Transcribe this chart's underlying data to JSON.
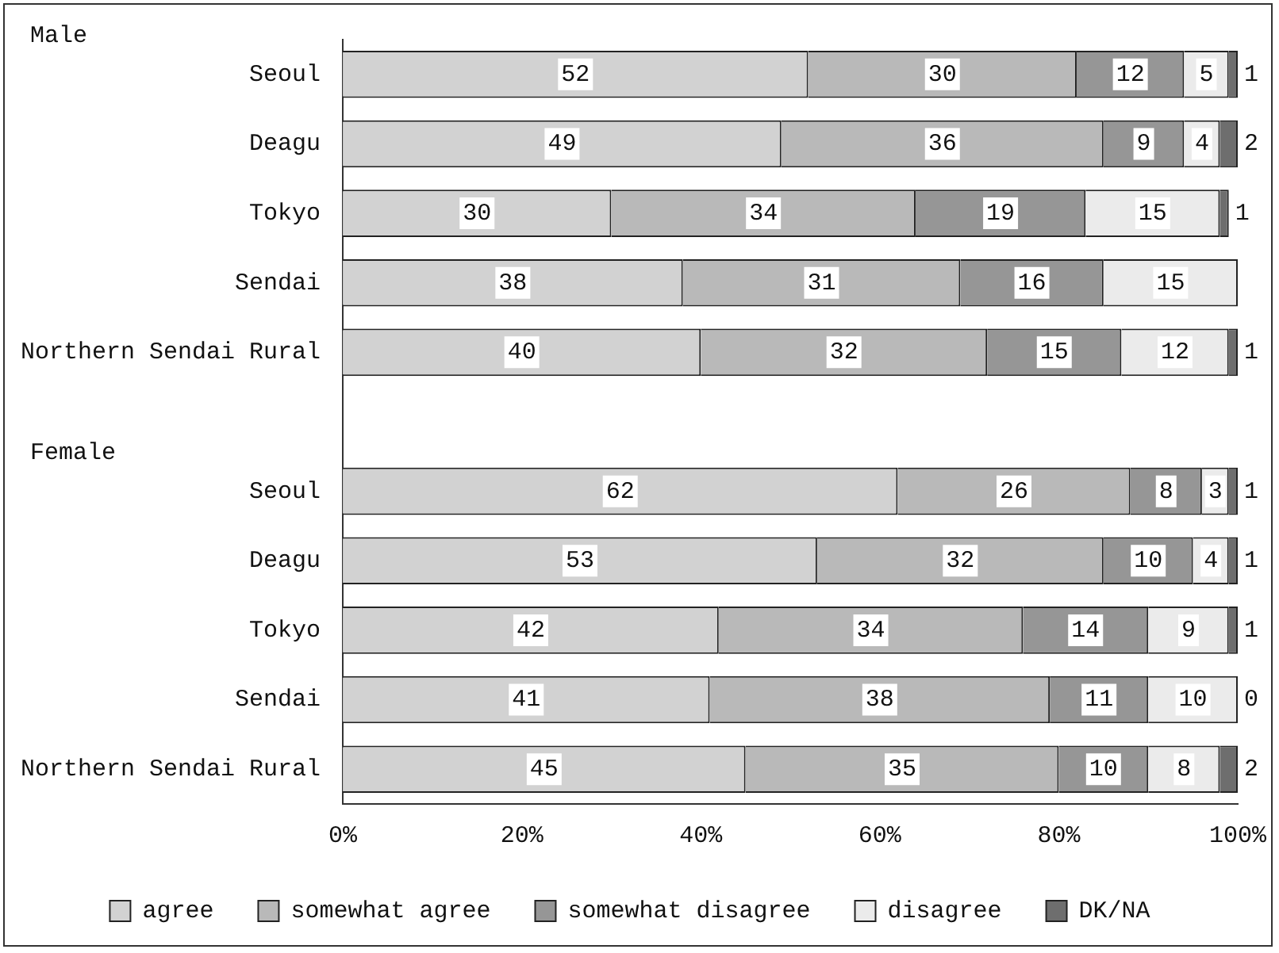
{
  "chart_data": {
    "type": "bar",
    "orientation": "horizontal",
    "stacked": true,
    "categories": [
      "Seoul",
      "Deagu",
      "Tokyo",
      "Sendai",
      "Northern Sendai Rural",
      null,
      "Seoul",
      "Deagu",
      "Tokyo",
      "Sendai",
      "Northern Sendai Rural"
    ],
    "series": [
      {
        "name": "agree",
        "color": "#d2d2d2",
        "values": [
          52,
          49,
          30,
          38,
          40,
          null,
          62,
          53,
          42,
          41,
          45
        ],
        "value_labels": [
          "52",
          "49",
          "30",
          "38",
          "40",
          null,
          "62",
          "53",
          "42",
          "41",
          "45"
        ]
      },
      {
        "name": "somewhat agree",
        "color": "#b9b9b9",
        "values": [
          30,
          36,
          34,
          31,
          32,
          null,
          26,
          32,
          34,
          38,
          35
        ],
        "value_labels": [
          "30",
          "36",
          "34",
          "31",
          "32",
          null,
          "26",
          "32",
          "34",
          "38",
          "35"
        ]
      },
      {
        "name": "somewhat disagree",
        "color": "#969696",
        "values": [
          12,
          9,
          19,
          16,
          15,
          null,
          8,
          10,
          14,
          11,
          10
        ],
        "value_labels": [
          "12",
          "9",
          "19",
          "16",
          "15",
          null,
          "8",
          "10",
          "14",
          "11",
          "10"
        ]
      },
      {
        "name": "disagree",
        "color": "#ebebeb",
        "values": [
          5,
          4,
          15,
          15,
          12,
          null,
          3,
          4,
          9,
          10,
          8
        ],
        "value_labels": [
          "5",
          "4",
          "15",
          "15",
          "12",
          null,
          "3",
          "4",
          "9",
          "10",
          "8"
        ]
      },
      {
        "name": "DK/NA",
        "color": "#6e6e6e",
        "values": [
          1,
          2,
          1,
          0,
          1,
          null,
          1,
          1,
          1,
          0,
          2
        ],
        "value_labels": [
          "1",
          "2",
          "1",
          null,
          "1",
          null,
          "1",
          "1",
          "1",
          "0",
          "2"
        ]
      }
    ],
    "xlim": [
      0,
      100
    ],
    "xticks": [
      {
        "value": 0,
        "label": "0%"
      },
      {
        "value": 20,
        "label": "20%"
      },
      {
        "value": 40,
        "label": "40%"
      },
      {
        "value": 60,
        "label": "60%"
      },
      {
        "value": 80,
        "label": "80%"
      },
      {
        "value": 100,
        "label": "100%"
      }
    ],
    "annotations": [
      "Male",
      "Female"
    ],
    "grid": false,
    "legend": "bottom"
  }
}
